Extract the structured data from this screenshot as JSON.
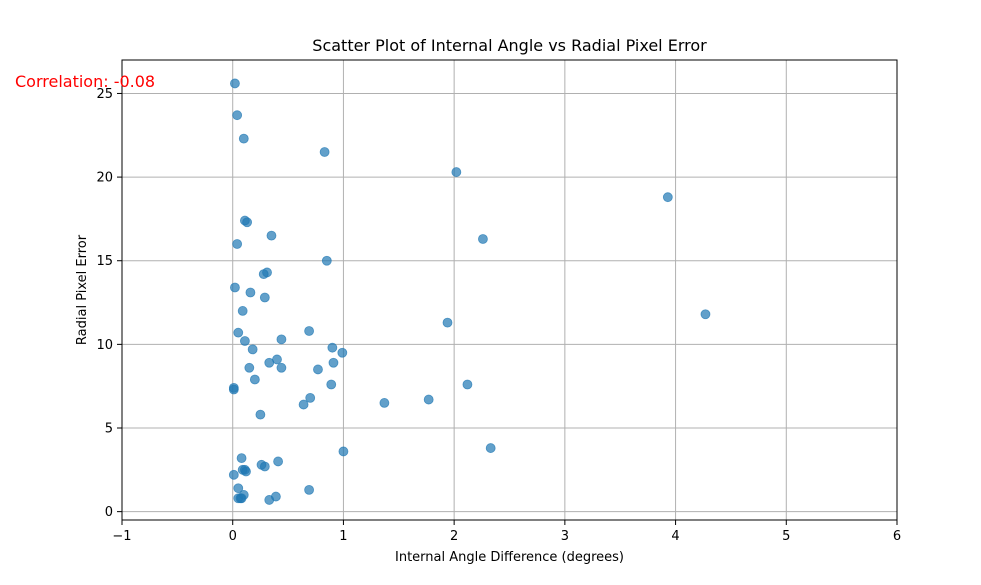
{
  "chart_data": {
    "type": "scatter",
    "title": "Scatter Plot of Internal Angle vs Radial Pixel Error",
    "xlabel": "Internal Angle Difference (degrees)",
    "ylabel": "Radial Pixel Error",
    "xlim": [
      -1,
      6
    ],
    "ylim": [
      -0.5,
      27
    ],
    "xticks": [
      -1,
      0,
      1,
      2,
      3,
      4,
      5,
      6
    ],
    "yticks": [
      0,
      5,
      10,
      15,
      20,
      25
    ],
    "grid": true,
    "marker_color": "#1f77b4",
    "marker_alpha": 0.7,
    "annotation": {
      "text": "Correlation: -0.08",
      "color": "#ff0000"
    },
    "points": [
      {
        "x": 0.02,
        "y": 25.6
      },
      {
        "x": 0.04,
        "y": 23.7
      },
      {
        "x": 0.1,
        "y": 22.3
      },
      {
        "x": 0.83,
        "y": 21.5
      },
      {
        "x": 2.02,
        "y": 20.3
      },
      {
        "x": 3.93,
        "y": 18.8
      },
      {
        "x": 0.11,
        "y": 17.4
      },
      {
        "x": 0.13,
        "y": 17.3
      },
      {
        "x": 0.35,
        "y": 16.5
      },
      {
        "x": 2.26,
        "y": 16.3
      },
      {
        "x": 0.04,
        "y": 16.0
      },
      {
        "x": 0.85,
        "y": 15.0
      },
      {
        "x": 0.31,
        "y": 14.3
      },
      {
        "x": 0.28,
        "y": 14.2
      },
      {
        "x": 0.02,
        "y": 13.4
      },
      {
        "x": 0.16,
        "y": 13.1
      },
      {
        "x": 0.29,
        "y": 12.8
      },
      {
        "x": 0.09,
        "y": 12.0
      },
      {
        "x": 4.27,
        "y": 11.8
      },
      {
        "x": 1.94,
        "y": 11.3
      },
      {
        "x": 0.69,
        "y": 10.8
      },
      {
        "x": 0.05,
        "y": 10.7
      },
      {
        "x": 0.44,
        "y": 10.3
      },
      {
        "x": 0.11,
        "y": 10.2
      },
      {
        "x": 0.9,
        "y": 9.8
      },
      {
        "x": 0.18,
        "y": 9.7
      },
      {
        "x": 0.99,
        "y": 9.5
      },
      {
        "x": 0.4,
        "y": 9.1
      },
      {
        "x": 0.91,
        "y": 8.9
      },
      {
        "x": 0.33,
        "y": 8.9
      },
      {
        "x": 0.15,
        "y": 8.6
      },
      {
        "x": 0.44,
        "y": 8.6
      },
      {
        "x": 0.77,
        "y": 8.5
      },
      {
        "x": 0.2,
        "y": 7.9
      },
      {
        "x": 0.89,
        "y": 7.6
      },
      {
        "x": 2.12,
        "y": 7.6
      },
      {
        "x": 0.01,
        "y": 7.4
      },
      {
        "x": 0.01,
        "y": 7.3
      },
      {
        "x": 0.7,
        "y": 6.8
      },
      {
        "x": 1.77,
        "y": 6.7
      },
      {
        "x": 0.64,
        "y": 6.4
      },
      {
        "x": 1.37,
        "y": 6.5
      },
      {
        "x": 0.25,
        "y": 5.8
      },
      {
        "x": 2.33,
        "y": 3.8
      },
      {
        "x": 1.0,
        "y": 3.6
      },
      {
        "x": 0.08,
        "y": 3.2
      },
      {
        "x": 0.41,
        "y": 3.0
      },
      {
        "x": 0.26,
        "y": 2.8
      },
      {
        "x": 0.29,
        "y": 2.7
      },
      {
        "x": 0.09,
        "y": 2.5
      },
      {
        "x": 0.11,
        "y": 2.5
      },
      {
        "x": 0.12,
        "y": 2.4
      },
      {
        "x": 0.01,
        "y": 2.2
      },
      {
        "x": 0.05,
        "y": 1.4
      },
      {
        "x": 0.69,
        "y": 1.3
      },
      {
        "x": 0.1,
        "y": 1.0
      },
      {
        "x": 0.39,
        "y": 0.9
      },
      {
        "x": 0.05,
        "y": 0.8
      },
      {
        "x": 0.07,
        "y": 0.8
      },
      {
        "x": 0.08,
        "y": 0.8
      },
      {
        "x": 0.33,
        "y": 0.7
      }
    ]
  }
}
